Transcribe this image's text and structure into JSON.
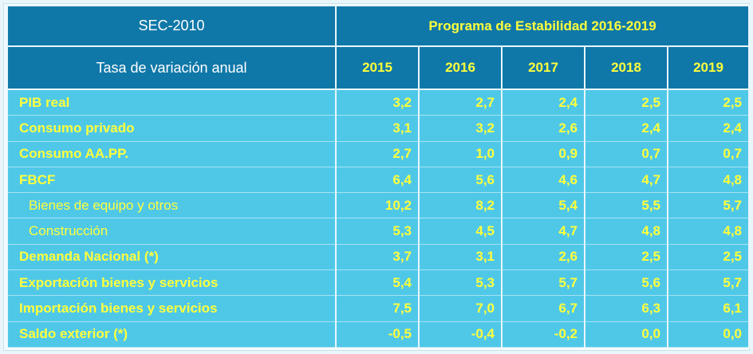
{
  "header": {
    "sec_label": "SEC-2010",
    "program_title": "Programa de Estabilidad 2016-2019",
    "row_label": "Tasa de variación anual",
    "years": [
      "2015",
      "2016",
      "2017",
      "2018",
      "2019"
    ]
  },
  "rows": [
    {
      "label": "PIB real",
      "sub": false,
      "values": [
        "3,2",
        "2,7",
        "2,4",
        "2,5",
        "2,5"
      ]
    },
    {
      "label": "Consumo privado",
      "sub": false,
      "values": [
        "3,1",
        "3,2",
        "2,6",
        "2,4",
        "2,4"
      ]
    },
    {
      "label": "Consumo  AA.PP.",
      "sub": false,
      "values": [
        "2,7",
        "1,0",
        "0,9",
        "0,7",
        "0,7"
      ]
    },
    {
      "label": "FBCF",
      "sub": false,
      "values": [
        "6,4",
        "5,6",
        "4,6",
        "4,7",
        "4,8"
      ]
    },
    {
      "label": "Bienes de equipo y otros",
      "sub": true,
      "values": [
        "10,2",
        "8,2",
        "5,4",
        "5,5",
        "5,7"
      ]
    },
    {
      "label": "Construcción",
      "sub": true,
      "values": [
        "5,3",
        "4,5",
        "4,7",
        "4,8",
        "4,8"
      ]
    },
    {
      "label": "Demanda Nacional  (*)",
      "sub": false,
      "values": [
        "3,7",
        "3,1",
        "2,6",
        "2,5",
        "2,5"
      ]
    },
    {
      "label": "Exportación bienes y servicios",
      "sub": false,
      "values": [
        "5,4",
        "5,3",
        "5,7",
        "5,6",
        "5,7"
      ]
    },
    {
      "label": "Importación bienes y servicios",
      "sub": false,
      "values": [
        "7,5",
        "7,0",
        "6,7",
        "6,3",
        "6,1"
      ]
    },
    {
      "label": "Saldo exterior  (*)",
      "sub": false,
      "values": [
        "-0,5",
        "-0,4",
        "-0,2",
        "0,0",
        "0,0"
      ]
    }
  ],
  "colors": {
    "header_bg": "#0f78a8",
    "body_bg": "#4fc8e8",
    "highlight_text": "#ffff3c",
    "header_text": "#ffffff"
  }
}
